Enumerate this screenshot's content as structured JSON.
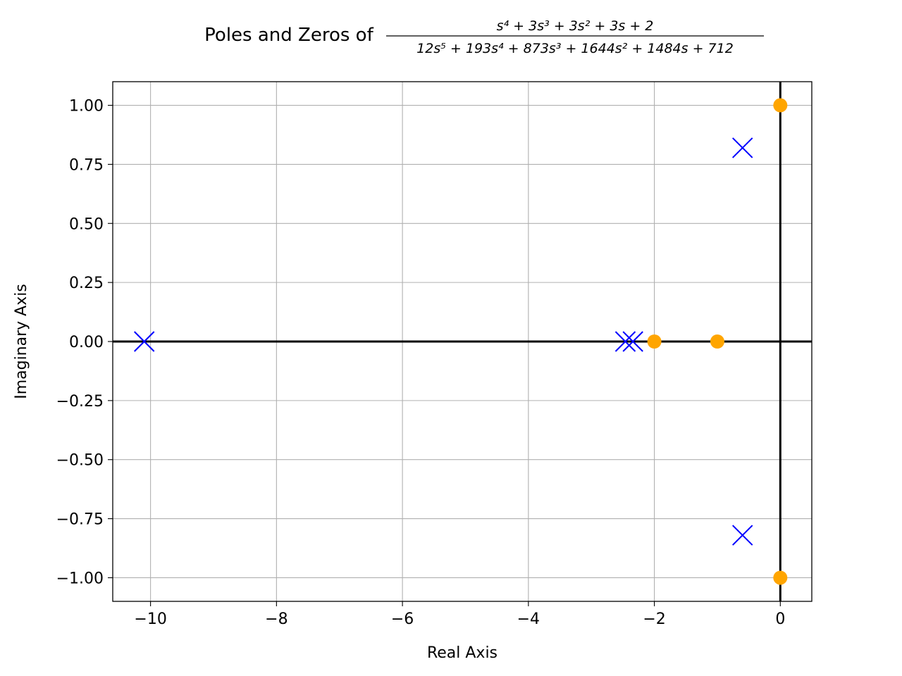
{
  "chart_data": {
    "type": "scatter",
    "title_prefix": "Poles and Zeros of ",
    "title_numerator": "s⁴ + 3s³ + 3s² + 3s + 2",
    "title_denominator": "12s⁵ + 193s⁴ + 873s³ + 1644s² + 1484s + 712",
    "xlabel": "Real Axis",
    "ylabel": "Imaginary Axis",
    "xlim": [
      -10.6,
      0.5
    ],
    "ylim": [
      -1.1,
      1.1
    ],
    "x_ticks": [
      -10,
      -8,
      -6,
      -4,
      -2,
      0
    ],
    "x_tick_labels": [
      "−10",
      "−8",
      "−6",
      "−4",
      "−2",
      "0"
    ],
    "y_ticks": [
      1.0,
      0.75,
      0.5,
      0.25,
      0.0,
      -0.25,
      -0.5,
      -0.75,
      -1.0
    ],
    "y_tick_labels": [
      "1.00",
      "0.75",
      "0.50",
      "0.25",
      "0.00",
      "−0.25",
      "−0.50",
      "−0.75",
      "−1.00"
    ],
    "grid": true,
    "series": [
      {
        "marker": "x",
        "color": "#0000ff",
        "points": [
          {
            "x": -10.1,
            "y": 0.0
          },
          {
            "x": -2.46,
            "y": 0.0
          },
          {
            "x": -2.34,
            "y": 0.0
          },
          {
            "x": -0.6,
            "y": 0.82
          },
          {
            "x": -0.6,
            "y": -0.82
          }
        ]
      },
      {
        "marker": "o",
        "color": "#ffa500",
        "points": [
          {
            "x": 0.0,
            "y": 1.0
          },
          {
            "x": 0.0,
            "y": -1.0
          },
          {
            "x": -1.0,
            "y": 0.0
          },
          {
            "x": -2.0,
            "y": 0.0
          }
        ]
      }
    ]
  }
}
